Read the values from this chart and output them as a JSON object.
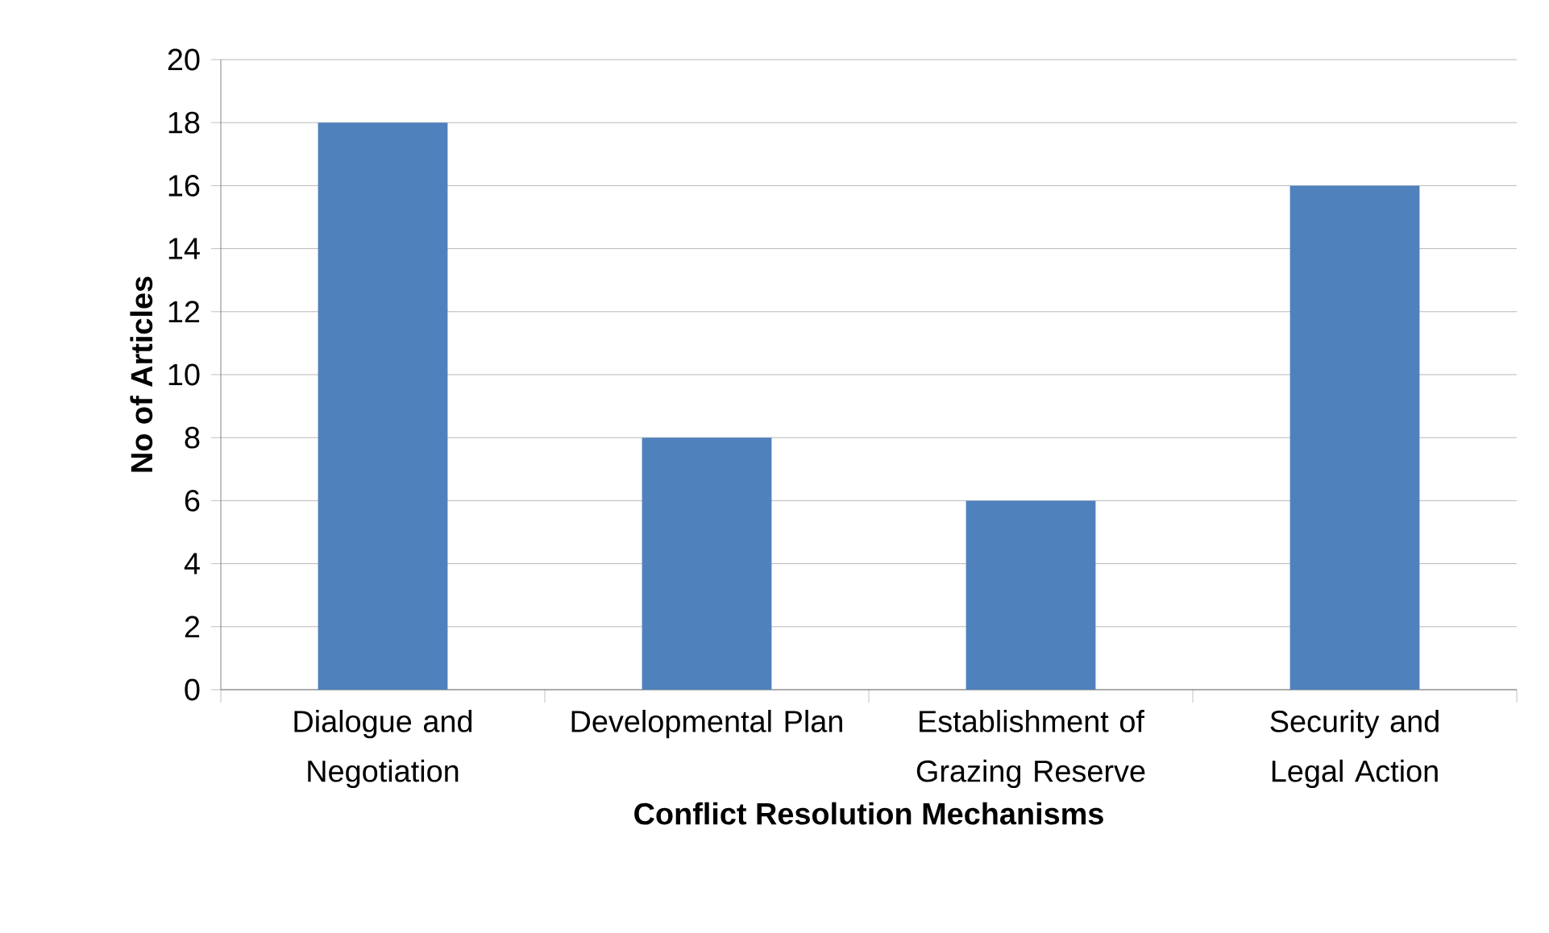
{
  "chart_data": {
    "type": "bar",
    "xlabel": "Conflict Resolution Mechanisms",
    "ylabel": "No of Articles",
    "categories": [
      "Dialogue and Negotiation",
      "Developmental Plan",
      "Establishment of Grazing Reserve",
      "Security and Legal Action"
    ],
    "values": [
      18,
      8,
      6,
      16
    ],
    "color": "#4f81bd",
    "ylim": [
      0,
      20
    ],
    "yticks": [
      0,
      2,
      4,
      6,
      8,
      10,
      12,
      14,
      16,
      18,
      20
    ],
    "grid": "y"
  }
}
